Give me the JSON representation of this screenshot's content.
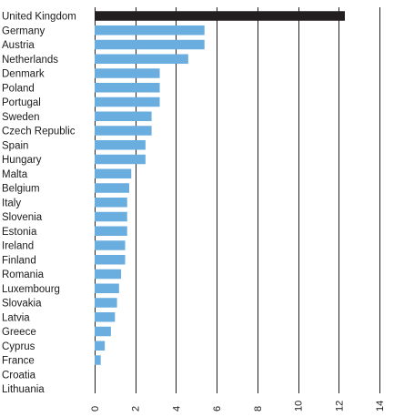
{
  "chart_data": {
    "type": "bar",
    "orientation": "horizontal",
    "title": "",
    "xlabel": "",
    "ylabel": "",
    "xlim": [
      0,
      14
    ],
    "ticks": [
      0,
      2,
      4,
      6,
      8,
      10,
      12,
      14
    ],
    "tick_labels": [
      "0",
      "2",
      "4",
      "6",
      "8",
      "10",
      "12",
      "14"
    ],
    "grid": "vertical",
    "colors": {
      "default": "#6aaee0",
      "highlight": "#231f20",
      "grid": "#231f20"
    },
    "highlight_category": "United Kingdom",
    "categories": [
      "United Kingdom",
      "Germany",
      "Austria",
      "Netherlands",
      "Denmark",
      "Poland",
      "Portugal",
      "Sweden",
      "Czech Republic",
      "Spain",
      "Hungary",
      "Malta",
      "Belgium",
      "Italy",
      "Slovenia",
      "Estonia",
      "Ireland",
      "Finland",
      "Romania",
      "Luxembourg",
      "Slovakia",
      "Latvia",
      "Greece",
      "Cyprus",
      "France",
      "Croatia",
      "Lithuania"
    ],
    "values": [
      12.3,
      5.4,
      5.4,
      4.6,
      3.2,
      3.2,
      3.2,
      2.8,
      2.8,
      2.5,
      2.5,
      1.8,
      1.7,
      1.6,
      1.6,
      1.6,
      1.5,
      1.5,
      1.3,
      1.2,
      1.1,
      1.0,
      0.8,
      0.5,
      0.3,
      0,
      0
    ]
  }
}
